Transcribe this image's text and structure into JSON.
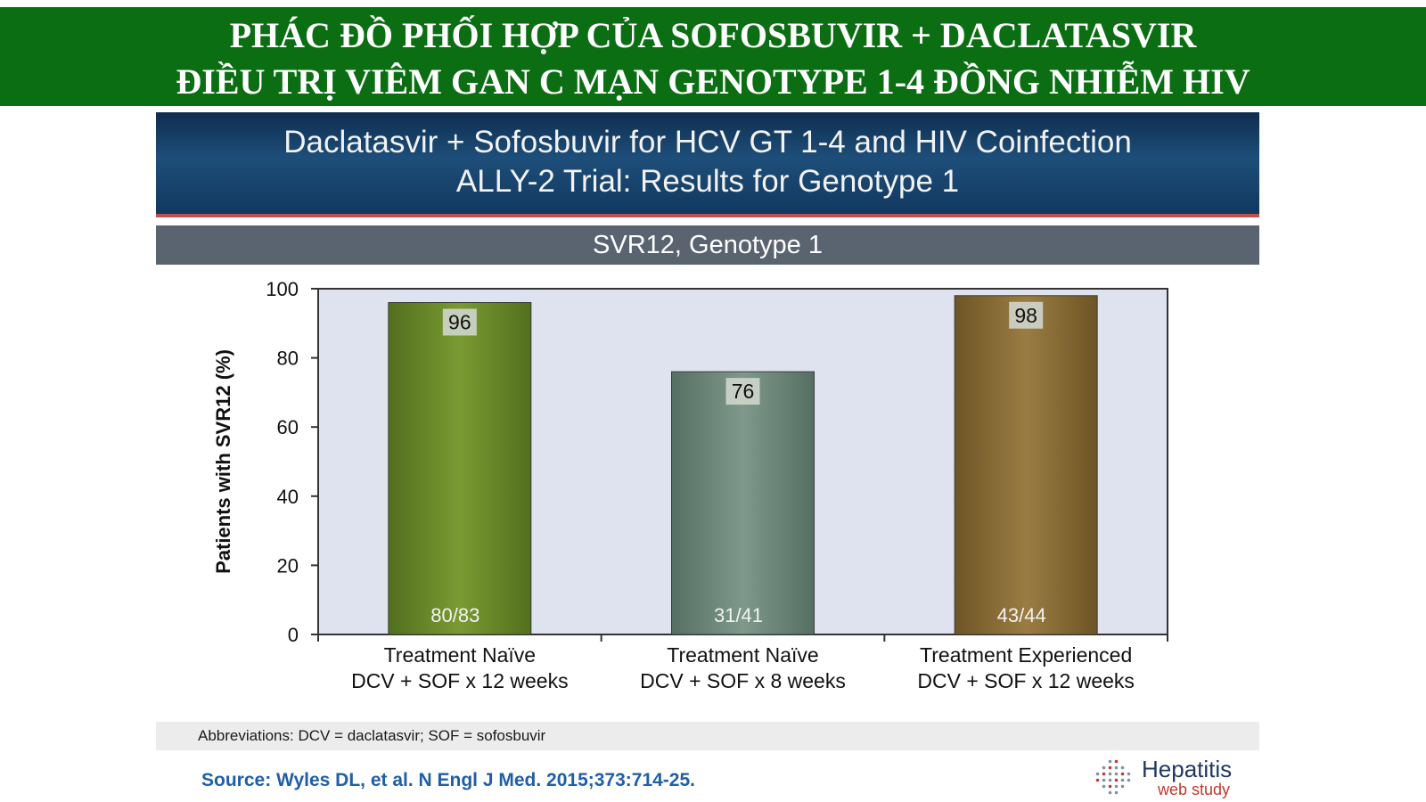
{
  "banner": {
    "line1": "PHÁC ĐỒ PHỐI HỢP CỦA SOFOSBUVIR + DACLATASVIR",
    "line2": "ĐIỀU TRỊ VIÊM GAN C MẠN GENOTYPE 1-4 ĐỒNG NHIỄM HIV"
  },
  "slide": {
    "title_line1": "Daclatasvir + Sofosbuvir for HCV GT 1-4 and HIV Coinfection",
    "title_line2": "ALLY-2 Trial: Results for Genotype 1",
    "subtitle": "SVR12, Genotype 1",
    "abbreviations": "Abbreviations: DCV = daclatasvir; SOF = sofosbuvir",
    "source": "Source: Wyles DL, et al. N Engl J Med. 2015;373:714-25.",
    "logo_title": "Hepatitis",
    "logo_sub": "web study"
  },
  "colors": {
    "banner_bg": "#0b6e13",
    "plot_bg": "#dfe3ef",
    "bar_colors": [
      "#6b8b2a",
      "#6e8a7d",
      "#8a6d36"
    ]
  },
  "icons": {
    "logo": "dotted-globe-icon"
  },
  "chart_data": {
    "type": "bar",
    "ylabel": "Patients with SVR12 (%)",
    "xlabel": "",
    "ylim": [
      0,
      100
    ],
    "yticks": [
      0,
      20,
      40,
      60,
      80,
      100
    ],
    "grid": false,
    "categories": [
      [
        "Treatment Naïve",
        "DCV + SOF x 12 weeks"
      ],
      [
        "Treatment Naïve",
        "DCV + SOF x 8 weeks"
      ],
      [
        "Treatment Experienced",
        "DCV + SOF x 12 weeks"
      ]
    ],
    "values": [
      96,
      76,
      98
    ],
    "value_labels": [
      "96",
      "76",
      "98"
    ],
    "counts": [
      "80/83",
      "31/41",
      "43/44"
    ]
  }
}
